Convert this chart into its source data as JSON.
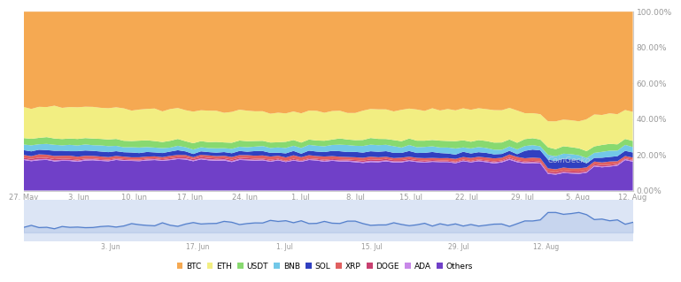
{
  "x_labels": [
    "27. May",
    "3. Jun",
    "10. Jun",
    "17. Jun",
    "24. Jun",
    "1. Jul",
    "8. Jul",
    "15. Jul",
    "22. Jul",
    "29. Jul",
    "5. Aug",
    "12. Aug"
  ],
  "n_points": 80,
  "colors": {
    "BTC": "#F5A952",
    "ETH": "#F2EE82",
    "USDT": "#88D970",
    "BNB": "#72C8E8",
    "SOL": "#3040C0",
    "XRP": "#E06060",
    "DOGE": "#C84070",
    "ADA": "#C888E8",
    "Others": "#7040C8"
  },
  "bg_color": "#ffffff",
  "minimap_bg": "#dce5f5",
  "minimap_line_color": "#5580CC",
  "y_ticks": [
    "0.00%",
    "20.00%",
    "40.00%",
    "60.00%",
    "80.00%",
    "100.00%"
  ],
  "y_tick_vals": [
    0,
    20,
    40,
    60,
    80,
    100
  ],
  "watermark": "CoinGecko",
  "axis_color": "#cccccc",
  "tick_color": "#999999",
  "mini_labels": [
    "3. Jun",
    "17. Jun",
    "1. Jul",
    "15. Jul",
    "29. Jul",
    "12. Aug"
  ]
}
